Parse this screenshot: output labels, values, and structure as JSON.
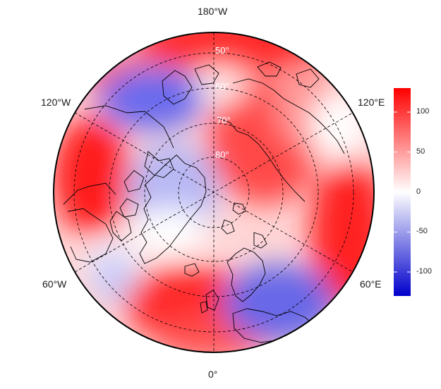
{
  "map": {
    "projection": "north-polar-stereographic",
    "longitude_labels": {
      "top": "180°W",
      "bottom": "0°",
      "upper_left": "120°W",
      "upper_right": "120°E",
      "lower_left": "60°W",
      "lower_right": "60°E"
    },
    "latitude_labels": [
      "50°",
      "60°",
      "70°",
      "80°"
    ],
    "graticule": "dashed",
    "coastlines": true,
    "country_borders": true
  },
  "colorbar": {
    "colormap": "blue-white-red",
    "low_color": "#0000cc",
    "mid_color": "#ffffff",
    "high_color": "#ff0000",
    "range": [
      -130,
      130
    ],
    "ticks": [
      {
        "value": 100,
        "label": "100"
      },
      {
        "value": 50,
        "label": "50"
      },
      {
        "value": 0,
        "label": "0"
      },
      {
        "value": -50,
        "label": "-50"
      },
      {
        "value": -100,
        "label": "-100"
      }
    ]
  }
}
